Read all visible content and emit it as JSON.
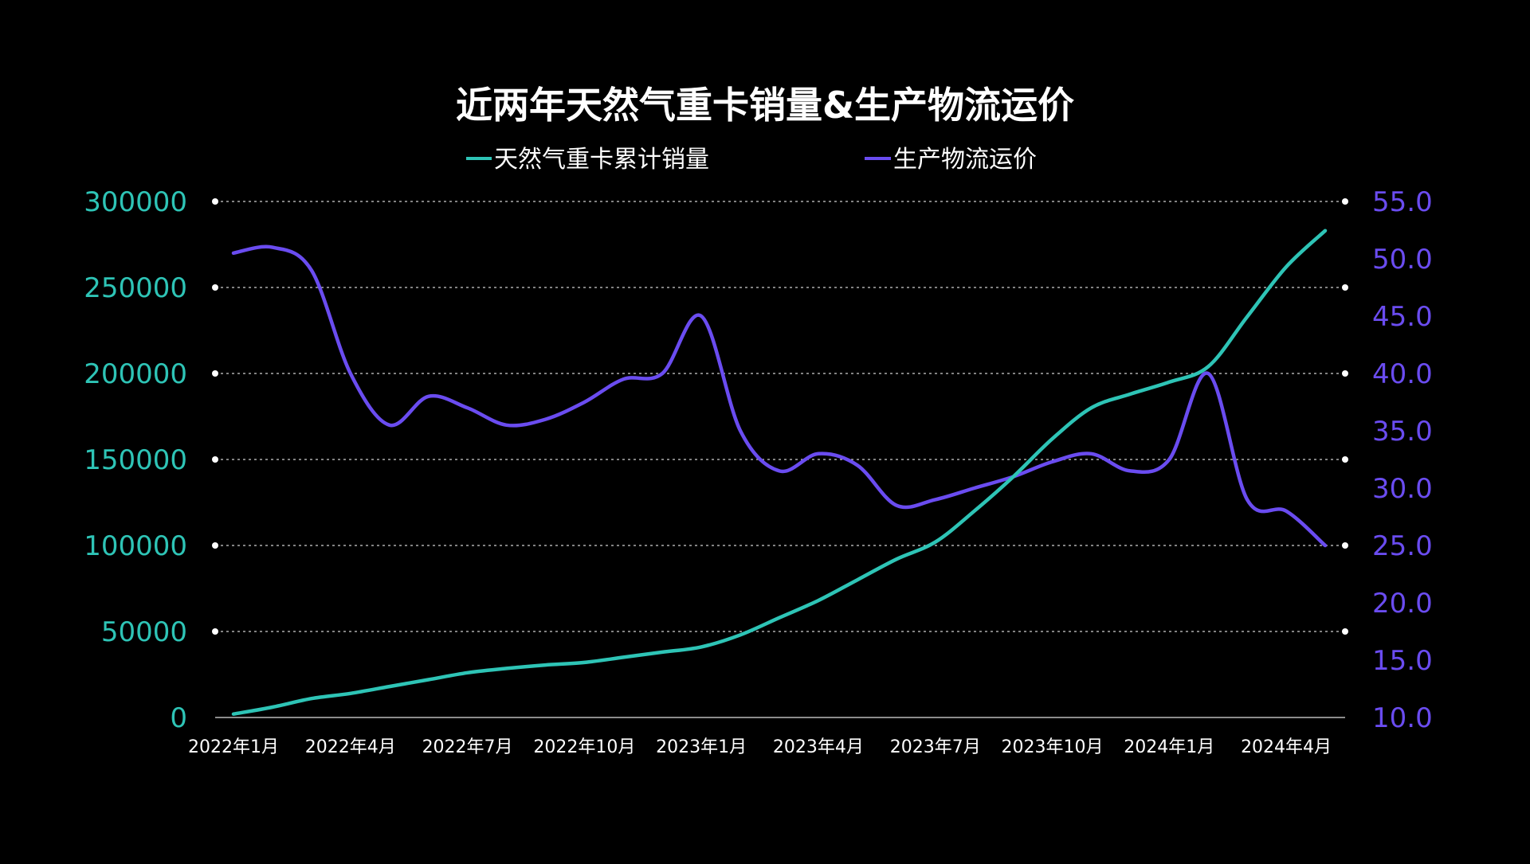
{
  "chart_data": {
    "type": "line",
    "title": "近两年天然气重卡销量&生产物流运价",
    "legend_position": "top",
    "grid": "horizontal-dashed",
    "x": [
      "2022年1月",
      "2022年2月",
      "2022年3月",
      "2022年4月",
      "2022年5月",
      "2022年6月",
      "2022年7月",
      "2022年8月",
      "2022年9月",
      "2022年10月",
      "2022年11月",
      "2022年12月",
      "2023年1月",
      "2023年2月",
      "2023年3月",
      "2023年4月",
      "2023年5月",
      "2023年6月",
      "2023年7月",
      "2023年8月",
      "2023年9月",
      "2023年10月",
      "2023年11月",
      "2023年12月",
      "2024年1月",
      "2024年2月",
      "2024年3月",
      "2024年4月",
      "2024年5月"
    ],
    "x_tick_labels": [
      "2022年1月",
      "2022年4月",
      "2022年7月",
      "2022年10月",
      "2023年1月",
      "2023年4月",
      "2023年7月",
      "2023年10月",
      "2024年1月",
      "2024年4月"
    ],
    "y_left": {
      "ylim": [
        0,
        300000
      ],
      "ticks": [
        "0",
        "50000",
        "100000",
        "150000",
        "200000",
        "250000",
        "300000"
      ],
      "color": "#2EC4B6"
    },
    "y_right": {
      "ylim": [
        10,
        55
      ],
      "ticks": [
        "10.0",
        "15.0",
        "20.0",
        "25.0",
        "30.0",
        "35.0",
        "40.0",
        "45.0",
        "50.0",
        "55.0"
      ],
      "color": "#6A4CF0"
    },
    "series": [
      {
        "name": "天然气重卡累计销量",
        "axis": "left",
        "color": "#2EC4B6",
        "values": [
          2000,
          6000,
          11000,
          14000,
          18000,
          22000,
          26000,
          28500,
          30500,
          32000,
          35000,
          38000,
          41000,
          48000,
          58000,
          68000,
          80000,
          92000,
          102000,
          120000,
          140000,
          162000,
          180000,
          188000,
          195000,
          204000,
          233000,
          262000,
          283000
        ]
      },
      {
        "name": "生产物流运价",
        "axis": "right",
        "color": "#6A4CF0",
        "values": [
          50.5,
          51.0,
          49.0,
          40.0,
          35.5,
          38.0,
          37.0,
          35.5,
          36.0,
          37.5,
          39.5,
          40.0,
          45.0,
          35.0,
          31.5,
          33.0,
          32.0,
          28.5,
          29.0,
          30.0,
          31.0,
          32.3,
          33.0,
          31.5,
          32.5,
          40.0,
          29.0,
          28.0,
          25.0
        ]
      }
    ]
  }
}
